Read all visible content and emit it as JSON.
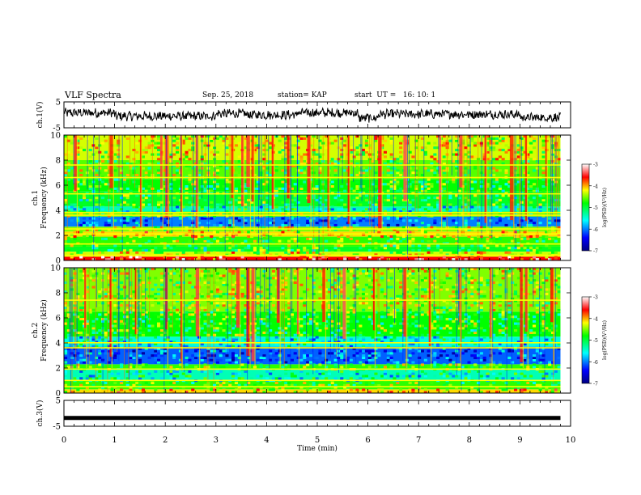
{
  "header": {
    "title": "VLF Spectra",
    "date": "Sep. 25, 2018",
    "station": "station= KAP",
    "start": "start  UT =   16: 10: 1"
  },
  "chart_data": [
    {
      "type": "line",
      "panel": "ch1-waveform",
      "ylabel": "ch.1(V)",
      "ylim": [
        -5,
        5
      ],
      "yticks": [
        5,
        -5
      ],
      "xlim": [
        0,
        10
      ],
      "description_values": {
        "x_end": 9.8,
        "segments": [
          {
            "x": [
              0.0,
              1.0
            ],
            "level": 0.8
          },
          {
            "x": [
              1.0,
              3.0
            ],
            "level": -0.5
          },
          {
            "x": [
              3.0,
              3.6
            ],
            "level": 0.5
          },
          {
            "x": [
              3.6,
              4.6
            ],
            "level": 0.0
          },
          {
            "x": [
              4.6,
              5.8
            ],
            "level": 0.8
          },
          {
            "x": [
              5.8,
              6.2
            ],
            "level": -1.2
          },
          {
            "x": [
              6.2,
              7.8
            ],
            "level": 0.3
          },
          {
            "x": [
              7.8,
              9.0
            ],
            "level": 0.2
          },
          {
            "x": [
              9.0,
              9.8
            ],
            "level": -1.0
          }
        ]
      }
    },
    {
      "type": "heatmap",
      "panel": "ch1-spectrogram",
      "ylabel": "ch.1 Frequency (kHz)",
      "ylim": [
        0,
        10
      ],
      "yticks": [
        0,
        2,
        4,
        6,
        8,
        10
      ],
      "xlim": [
        0,
        10
      ],
      "data_x_end": 9.8,
      "colorbar": {
        "label": "log(PSD)(V²/Hz)",
        "range": [
          -7,
          -3
        ],
        "ticks": [
          -3,
          -4,
          -5,
          -6,
          -7
        ]
      },
      "bands": [
        {
          "f": [
            0.0,
            0.3
          ],
          "level": -3.6
        },
        {
          "f": [
            0.3,
            0.7
          ],
          "level": -4.4
        },
        {
          "f": [
            0.7,
            1.1
          ],
          "level": -5.0
        },
        {
          "f": [
            1.1,
            1.9
          ],
          "level": -4.8
        },
        {
          "f": [
            1.9,
            2.3
          ],
          "level": -4.2
        },
        {
          "f": [
            2.3,
            2.7
          ],
          "level": -4.6
        },
        {
          "f": [
            2.7,
            3.5
          ],
          "level": -6.0
        },
        {
          "f": [
            3.5,
            3.9
          ],
          "level": -4.7
        },
        {
          "f": [
            3.9,
            4.3
          ],
          "level": -5.4
        },
        {
          "f": [
            4.3,
            5.5
          ],
          "level": -5.0
        },
        {
          "f": [
            5.5,
            6.5
          ],
          "level": -4.9
        },
        {
          "f": [
            6.5,
            8.0
          ],
          "level": -4.7
        },
        {
          "f": [
            8.0,
            10.0
          ],
          "level": -4.4
        }
      ],
      "bursts_min": [
        0.2,
        0.9,
        1.5,
        1.9,
        2.0,
        2.3,
        2.6,
        3.3,
        3.5,
        3.6,
        3.7,
        4.1,
        4.4,
        4.8,
        5.2,
        5.6,
        6.2,
        6.7,
        7.4,
        7.8,
        8.3,
        8.8,
        9.1,
        9.5
      ],
      "lines_khz": [
        0.4,
        1.3,
        2.1,
        2.5,
        3.6,
        3.8,
        5.3,
        6.6,
        7.6
      ]
    },
    {
      "type": "heatmap",
      "panel": "ch2-spectrogram",
      "ylabel": "ch.2 Frequency (kHz)",
      "ylim": [
        0,
        10
      ],
      "yticks": [
        0,
        2,
        4,
        6,
        8,
        10
      ],
      "xlim": [
        0,
        10
      ],
      "data_x_end": 9.8,
      "colorbar": {
        "label": "log(PSD)(V²/Hz)",
        "range": [
          -7,
          -3
        ],
        "ticks": [
          -3,
          -4,
          -5,
          -6,
          -7
        ]
      },
      "bands": [
        {
          "f": [
            0.0,
            0.3
          ],
          "level": -4.2
        },
        {
          "f": [
            0.3,
            1.0
          ],
          "level": -4.8
        },
        {
          "f": [
            1.0,
            1.9
          ],
          "level": -5.4
        },
        {
          "f": [
            1.9,
            2.3
          ],
          "level": -4.8
        },
        {
          "f": [
            2.3,
            3.7
          ],
          "level": -6.1
        },
        {
          "f": [
            3.7,
            4.5
          ],
          "level": -5.5
        },
        {
          "f": [
            4.5,
            6.5
          ],
          "level": -4.9
        },
        {
          "f": [
            6.5,
            10.0
          ],
          "level": -4.6
        }
      ],
      "bursts_min": [
        0.4,
        0.9,
        1.4,
        2.0,
        2.3,
        2.6,
        3.4,
        3.6,
        3.7,
        4.2,
        4.6,
        5.1,
        5.5,
        6.1,
        6.7,
        7.2,
        7.8,
        8.4,
        9.0,
        9.1,
        9.6
      ],
      "lines_khz": [
        0.5,
        1.0,
        1.9,
        3.6,
        4.0,
        7.4
      ]
    },
    {
      "type": "line",
      "panel": "ch3-waveform",
      "ylabel": "ch.3(V)",
      "ylim": [
        -5,
        5
      ],
      "yticks": [
        5,
        -5
      ],
      "xlim": [
        0,
        10
      ],
      "xlabel": "Time  (min)",
      "xticks": [
        0,
        1,
        2,
        3,
        4,
        5,
        6,
        7,
        8,
        9,
        10
      ],
      "x": [
        0,
        9.8
      ],
      "y": [
        -1.8,
        -1.8
      ]
    }
  ]
}
